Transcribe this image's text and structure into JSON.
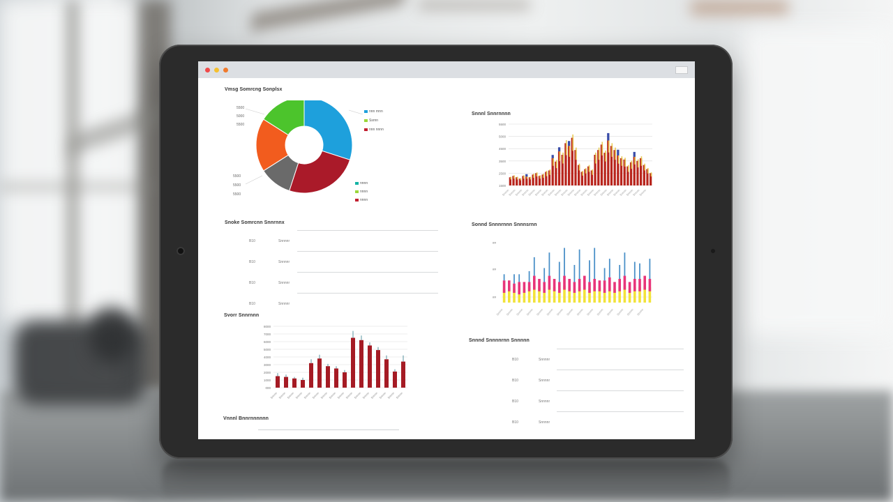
{
  "window": {
    "colors": {
      "close": "#f04a4a",
      "minimize": "#f5c02f",
      "maximize": "#f07a2c"
    }
  },
  "pie_panel": {
    "title": "Vmsg Somrcng Sonplsx",
    "legend_top": [
      {
        "label": "nnn rnnn",
        "color": "#1ea0dc"
      },
      {
        "label": "Ssrnn",
        "color": "#9bd63a"
      },
      {
        "label": "nnn nnnn",
        "color": "#c21f30"
      }
    ],
    "legend_bottom": [
      {
        "label": "nnnn",
        "color": "#13b3a4"
      },
      {
        "label": "nnnn",
        "color": "#9bd63a"
      },
      {
        "label": "nnnn",
        "color": "#c21f30"
      }
    ],
    "left_labels_top": [
      "5500",
      "5000",
      "5500"
    ],
    "left_labels_bottom": [
      "5500",
      "5500",
      "5500"
    ]
  },
  "list_panel_left": {
    "title": "Snoke Somrcnn Snnrnnx",
    "rows": [
      {
        "code": "B10",
        "name": "Snnnnr"
      },
      {
        "code": "B10",
        "name": "Snnnnr"
      },
      {
        "code": "B10",
        "name": "Snnnnr"
      },
      {
        "code": "B10",
        "name": "Snnnnr"
      }
    ]
  },
  "bar_panel_left": {
    "title": "Svorr Snnrnnn"
  },
  "footer_panel": {
    "title": "Vnnnl Bnnrnnnnnn"
  },
  "bar_panel_right_top": {
    "title": "Snnnl Snnrnnnn"
  },
  "bar_panel_right_mid": {
    "title": "Sonnd Snnnrnnn Snnnsrnn"
  },
  "list_panel_right": {
    "title": "Snnnd Snnnnrnn Snnnnn",
    "rows": [
      {
        "code": "B10",
        "name": "Snnnnr"
      },
      {
        "code": "B10",
        "name": "Snnnnr"
      },
      {
        "code": "B10",
        "name": "Snnnnr"
      },
      {
        "code": "B10",
        "name": "Snnnnr"
      }
    ]
  },
  "chart_data": [
    {
      "type": "pie",
      "title": "Vmsg Somrcng Sonplsx",
      "values": [
        30,
        25,
        11,
        18,
        16
      ],
      "colors": [
        "#1ea0dc",
        "#aa1a29",
        "#6a6a6a",
        "#f25c1e",
        "#4cc42c"
      ],
      "donut": true
    },
    {
      "type": "bar",
      "title": "Svorr Snnrnnn",
      "values": [
        15,
        14,
        12,
        10,
        32,
        38,
        28,
        25,
        20,
        65,
        62,
        55,
        49,
        37,
        21,
        34
      ],
      "error": [
        4,
        3,
        2,
        3,
        5,
        5,
        3,
        3,
        3,
        9,
        6,
        4,
        4,
        5,
        3,
        8
      ],
      "ylim": [
        0,
        80
      ],
      "ytick_labels": [
        "8000",
        "7000",
        "6000",
        "5000",
        "4000",
        "3000",
        "2000",
        "1000",
        "000"
      ],
      "color": "#a51b24",
      "xtick_labels": [
        "Snnnn",
        "Snnnn",
        "Snnnn",
        "Snnnn",
        "Snnnn",
        "Snnnn",
        "Snnnn",
        "Snnnn",
        "Snnnn",
        "Snnnn",
        "Snnnn",
        "Snnnn",
        "Snnnn",
        "Snnnn",
        "Snnnn",
        "Snnnn"
      ]
    },
    {
      "type": "bar",
      "title": "Snnnl Snnrnnnn",
      "categories": [
        "1",
        "2",
        "3",
        "4",
        "5",
        "6",
        "7",
        "8",
        "9",
        "10",
        "11",
        "12",
        "13",
        "14",
        "15",
        "16",
        "17",
        "18",
        "19",
        "20",
        "21",
        "22",
        "23",
        "24",
        "25",
        "26",
        "27",
        "28",
        "29",
        "30",
        "31",
        "32",
        "33",
        "34",
        "35",
        "36",
        "37",
        "38",
        "39",
        "40",
        "41",
        "42",
        "43",
        "44"
      ],
      "series": [
        {
          "color": "#b8241c",
          "values": [
            12,
            14,
            12,
            10,
            14,
            13,
            12,
            16,
            18,
            14,
            16,
            20,
            22,
            40,
            35,
            50,
            45,
            62,
            58,
            70,
            52,
            30,
            20,
            24,
            28,
            22,
            45,
            52,
            60,
            48,
            66,
            58,
            52,
            44,
            40,
            38,
            28,
            34,
            42,
            36,
            40,
            30,
            24,
            18
          ]
        },
        {
          "color": "#e8c94a",
          "values": [
            4,
            5,
            4,
            3,
            5,
            4,
            4,
            6,
            6,
            5,
            6,
            8,
            8,
            14,
            12,
            18,
            16,
            22,
            20,
            24,
            18,
            10,
            7,
            8,
            10,
            8,
            16,
            18,
            20,
            16,
            22,
            20,
            18,
            15,
            14,
            13,
            10,
            12,
            14,
            12,
            14,
            10,
            8,
            6
          ]
        },
        {
          "color": "#3a4da8",
          "values": [
            0,
            0,
            0,
            0,
            0,
            6,
            0,
            0,
            0,
            0,
            0,
            0,
            0,
            8,
            0,
            10,
            0,
            0,
            12,
            0,
            0,
            0,
            0,
            0,
            0,
            0,
            0,
            0,
            0,
            0,
            18,
            0,
            0,
            14,
            0,
            0,
            0,
            0,
            12,
            0,
            0,
            0,
            0,
            0
          ]
        }
      ],
      "ylim": [
        0,
        90
      ],
      "ytick_labels": [
        "5500",
        "5000",
        "4500",
        "3500",
        "2500",
        "1500"
      ]
    },
    {
      "type": "bar",
      "title": "Sonnd Snnnrnnn Snnnsrnn",
      "series": [
        {
          "color": "#f2e33a",
          "values": [
            18,
            20,
            18,
            16,
            18,
            20,
            22,
            20,
            18,
            22,
            20,
            18,
            22,
            20,
            18,
            20,
            22,
            18,
            20,
            20,
            18,
            20,
            18,
            20,
            22,
            18,
            20,
            20,
            22,
            20
          ]
        },
        {
          "color": "#e8357a",
          "values": [
            16,
            14,
            12,
            16,
            14,
            12,
            18,
            16,
            14,
            18,
            16,
            14,
            18,
            16,
            14,
            16,
            18,
            14,
            16,
            14,
            16,
            18,
            14,
            16,
            18,
            14,
            16,
            16,
            18,
            16
          ]
        },
        {
          "color": "#4a90c8",
          "values": [
            8,
            0,
            12,
            10,
            0,
            14,
            24,
            0,
            18,
            30,
            0,
            26,
            36,
            0,
            22,
            38,
            0,
            28,
            40,
            0,
            16,
            24,
            0,
            18,
            30,
            0,
            22,
            20,
            0,
            26
          ]
        }
      ],
      "ylim": [
        0,
        90
      ],
      "ytick_labels": [
        "##",
        "##",
        "##"
      ]
    }
  ]
}
